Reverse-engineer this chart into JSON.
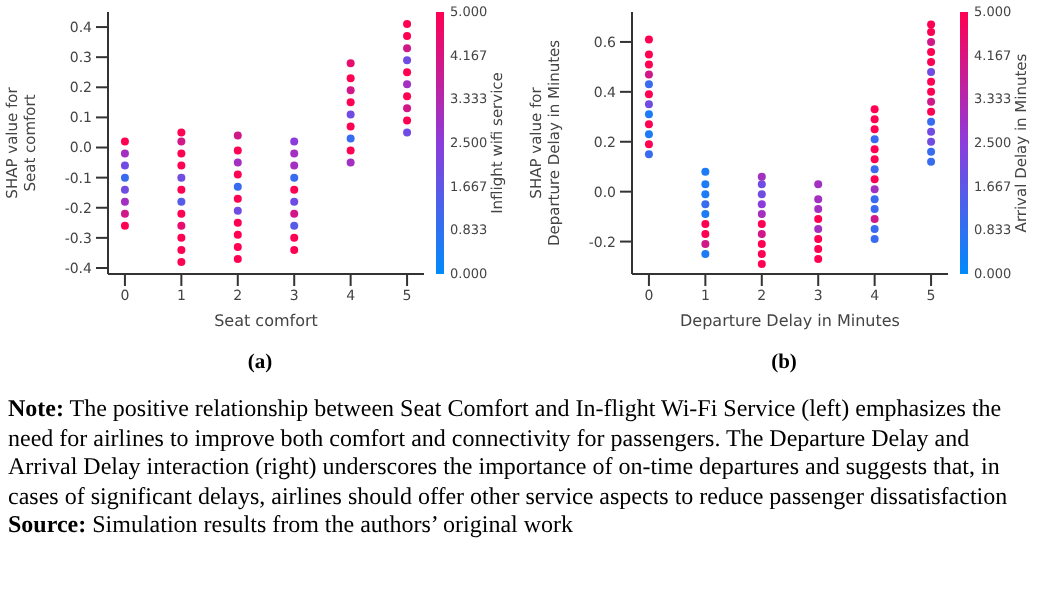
{
  "chart_data": [
    {
      "type": "scatter",
      "title": "(a)",
      "xlabel": "Seat comfort",
      "ylabel": "SHAP value for\nSeat comfort",
      "clabel": "Inflight wifi service",
      "marker": "circle",
      "grid": false,
      "xlim": [
        -0.3,
        5.3
      ],
      "xticks": [
        0,
        1,
        2,
        3,
        4,
        5
      ],
      "ylim": [
        -0.42,
        0.45
      ],
      "yticks": [
        {
          "value": -0.4,
          "label": "-0.4"
        },
        {
          "value": -0.3,
          "label": "-0.3"
        },
        {
          "value": -0.2,
          "label": "-0.2"
        },
        {
          "value": -0.1,
          "label": "-0.1"
        },
        {
          "value": 0,
          "label": "0.0"
        },
        0.1,
        0.2,
        0.3,
        0.4
      ],
      "clim": [
        0,
        5
      ],
      "cticks": [
        {
          "value": 0,
          "label": "0.000"
        },
        {
          "value": 0.833,
          "label": "0.833"
        },
        {
          "value": 1.667,
          "label": "1.667"
        },
        {
          "value": 2.5,
          "label": "2.500"
        },
        {
          "value": 3.333,
          "label": "3.333"
        },
        {
          "value": 4.167,
          "label": "4.167"
        },
        {
          "value": 5,
          "label": "5.000"
        }
      ],
      "series": [
        {
          "x": [
            0,
            0,
            0,
            0,
            0,
            0,
            0,
            0,
            1,
            1,
            1,
            1,
            1,
            1,
            1,
            1,
            1,
            1,
            1,
            1,
            2,
            2,
            2,
            2,
            2,
            2,
            2,
            2,
            2,
            2,
            2,
            3,
            3,
            3,
            3,
            3,
            3,
            3,
            3,
            3,
            3,
            4,
            4,
            4,
            4,
            4,
            4,
            4,
            4,
            4,
            5,
            5,
            5,
            5,
            5,
            5,
            5,
            5,
            5,
            5
          ],
          "values": [
            -0.26,
            -0.22,
            -0.18,
            -0.14,
            -0.1,
            -0.06,
            -0.02,
            0.02,
            -0.38,
            -0.34,
            -0.3,
            -0.26,
            -0.22,
            -0.18,
            -0.14,
            -0.1,
            -0.06,
            -0.02,
            0.02,
            0.05,
            -0.37,
            -0.33,
            -0.29,
            -0.25,
            -0.21,
            -0.17,
            -0.13,
            -0.09,
            -0.05,
            -0.01,
            0.04,
            -0.34,
            -0.3,
            -0.26,
            -0.22,
            -0.18,
            -0.14,
            -0.1,
            -0.06,
            -0.02,
            0.02,
            -0.05,
            -0.01,
            0.03,
            0.07,
            0.11,
            0.15,
            0.19,
            0.23,
            0.28,
            0.05,
            0.09,
            0.13,
            0.17,
            0.21,
            0.25,
            0.29,
            0.33,
            0.37,
            0.41
          ],
          "cvalues": [
            5,
            4,
            3,
            2,
            1,
            2,
            3,
            5,
            5,
            5,
            5,
            4.5,
            5,
            1.5,
            5,
            2,
            5,
            5,
            4,
            5,
            5,
            5,
            5,
            5,
            2,
            5,
            1,
            5,
            3,
            5,
            4,
            5,
            5,
            1.5,
            4,
            2,
            5,
            1,
            3,
            3,
            2.5,
            3,
            5,
            1,
            5,
            2,
            5,
            4,
            5,
            4.5,
            2,
            5,
            4,
            5,
            3,
            5,
            2,
            4,
            5,
            5
          ]
        }
      ]
    },
    {
      "type": "scatter",
      "title": "(b)",
      "xlabel": "Departure Delay in Minutes",
      "ylabel": "SHAP value for\nDeparture Delay in Minutes",
      "clabel": "Arrival Delay in Minutes",
      "marker": "circle",
      "grid": false,
      "xlim": [
        -0.3,
        5.3
      ],
      "xticks": [
        0,
        1,
        2,
        3,
        4,
        5
      ],
      "ylim": [
        -0.33,
        0.72
      ],
      "yticks": [
        {
          "value": -0.2,
          "label": "-0.2"
        },
        {
          "value": 0,
          "label": "0.0"
        },
        0.2,
        0.4,
        0.6
      ],
      "clim": [
        0,
        5
      ],
      "cticks": [
        {
          "value": 0,
          "label": "0.000"
        },
        {
          "value": 0.833,
          "label": "0.833"
        },
        {
          "value": 1.667,
          "label": "1.667"
        },
        {
          "value": 2.5,
          "label": "2.500"
        },
        {
          "value": 3.333,
          "label": "3.333"
        },
        {
          "value": 4.167,
          "label": "4.167"
        },
        {
          "value": 5,
          "label": "5.000"
        }
      ],
      "series": [
        {
          "x": [
            0,
            0,
            0,
            0,
            0,
            0,
            0,
            0,
            0,
            0,
            0,
            0,
            1,
            1,
            1,
            1,
            1,
            1,
            1,
            1,
            1,
            2,
            2,
            2,
            2,
            2,
            2,
            2,
            2,
            2,
            2,
            3,
            3,
            3,
            3,
            3,
            3,
            3,
            3,
            4,
            4,
            4,
            4,
            4,
            4,
            4,
            4,
            4,
            4,
            4,
            4,
            4,
            4,
            5,
            5,
            5,
            5,
            5,
            5,
            5,
            5,
            5,
            5,
            5,
            5,
            5,
            5,
            5
          ],
          "values": [
            0.15,
            0.19,
            0.23,
            0.27,
            0.31,
            0.35,
            0.39,
            0.43,
            0.47,
            0.51,
            0.55,
            0.61,
            -0.25,
            -0.21,
            -0.17,
            -0.13,
            -0.09,
            -0.05,
            -0.01,
            0.03,
            0.08,
            -0.29,
            -0.25,
            -0.21,
            -0.17,
            -0.13,
            -0.09,
            -0.05,
            -0.01,
            0.03,
            0.06,
            -0.27,
            -0.23,
            -0.19,
            -0.15,
            -0.11,
            -0.07,
            -0.03,
            0.03,
            -0.19,
            -0.15,
            -0.11,
            -0.07,
            -0.03,
            0.01,
            0.05,
            0.09,
            0.13,
            0.17,
            0.21,
            0.25,
            0.29,
            0.33,
            0.12,
            0.16,
            0.2,
            0.24,
            0.28,
            0.32,
            0.36,
            0.4,
            0.44,
            0.48,
            0.52,
            0.56,
            0.6,
            0.64,
            0.67
          ],
          "cvalues": [
            1,
            5,
            0.5,
            5,
            0.5,
            2,
            5,
            1,
            4,
            5,
            5,
            5,
            0.5,
            4,
            5,
            5,
            0.5,
            1,
            0.5,
            0.5,
            0.5,
            5,
            5,
            5,
            4,
            5,
            3,
            2.5,
            2,
            2,
            3,
            5,
            5,
            5,
            3,
            5,
            3,
            3,
            3,
            1,
            1,
            4,
            1,
            1,
            3,
            5,
            1,
            5,
            5,
            1,
            5,
            5,
            5,
            1,
            1,
            2,
            2,
            1,
            5,
            4,
            5,
            5,
            2,
            5,
            5,
            4,
            5,
            5
          ]
        }
      ]
    },
    {
      "type": "other",
      "annotations": [
        "Note: The positive relationship between Seat Comfort and In-flight Wi-Fi Service (left) emphasizes the need for airlines to improve both comfort and connectivity for passengers. The Departure Delay and Arrival Delay interaction (right) underscores the importance of on-time departures and suggests that, in cases of significant delays, airlines should offer other service aspects to reduce passenger dissatisfaction",
        "Source: Simulation results from the authors’ original work"
      ]
    }
  ]
}
